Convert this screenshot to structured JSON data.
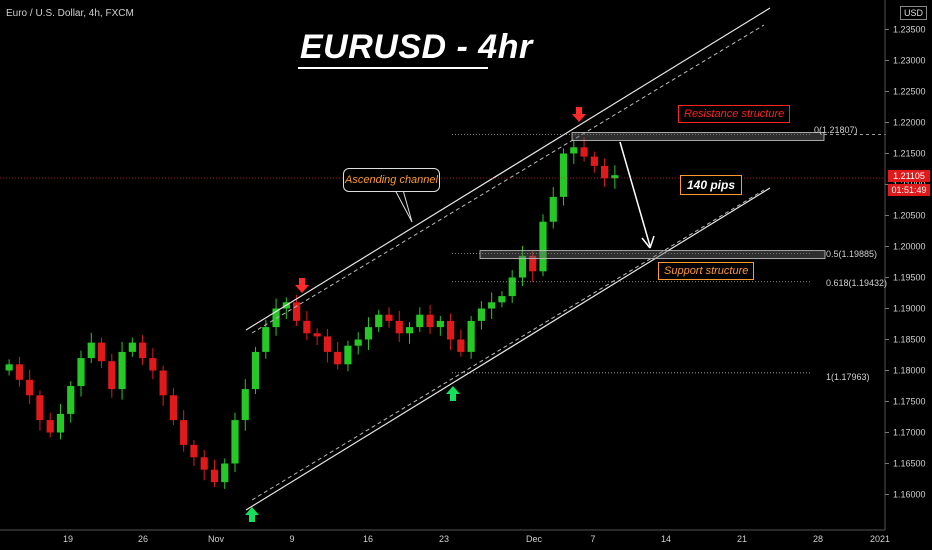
{
  "header": {
    "symbol": "Euro / U.S. Dollar, 4h, FXCM",
    "title": "EURUSD - 4hr",
    "currency": "USD"
  },
  "annotations": {
    "resistance": "Resistance structure",
    "support": "Support structure",
    "channel": "Ascending channel",
    "pips": "140 pips"
  },
  "fib_levels": [
    {
      "label": "0(1.21807)",
      "price": 1.21807
    },
    {
      "label": "0.5(1.19885)",
      "price": 1.19885
    },
    {
      "label": "0.618(1.19432)",
      "price": 1.19432
    },
    {
      "label": "1(1.17963)",
      "price": 1.17963
    }
  ],
  "price_badges": {
    "last_price": "1.21105",
    "countdown": "01:51:49"
  },
  "colors": {
    "up": "#26c826",
    "down": "#e01a1a",
    "resistance": "#ff2222",
    "support": "#ff9a2e",
    "arrow_up": "#16e05a",
    "arrow_down": "#ff2a2a"
  },
  "chart_data": {
    "type": "line",
    "title": "EURUSD - 4hr",
    "ylabel": "USD",
    "ylim": [
      1.1575,
      1.2375
    ],
    "y_ticks": [
      "1.23500",
      "1.23000",
      "1.22500",
      "1.22000",
      "1.21500",
      "1.21000",
      "1.20500",
      "1.20000",
      "1.19500",
      "1.19000",
      "1.18500",
      "1.18000",
      "1.17500",
      "1.17000",
      "1.16500",
      "1.16000"
    ],
    "x_ticks": [
      "19",
      "26",
      "Nov",
      "9",
      "16",
      "23",
      "Dec",
      "7",
      "14",
      "21",
      "28",
      "2021"
    ],
    "series": [
      {
        "values": [
          1.181,
          1.1785,
          1.176,
          1.172,
          1.17,
          1.173,
          1.1775,
          1.182,
          1.1845,
          1.1815,
          1.177,
          1.183,
          1.1845,
          1.182,
          1.18,
          1.176,
          1.172,
          1.168,
          1.166,
          1.164,
          1.162,
          1.165,
          1.172,
          1.177,
          1.183,
          1.187,
          1.19,
          1.191,
          1.188,
          1.186,
          1.1855,
          1.183,
          1.181,
          1.184,
          1.185,
          1.187,
          1.189,
          1.188,
          1.186,
          1.187,
          1.189,
          1.187,
          1.188,
          1.185,
          1.183,
          1.188,
          1.19,
          1.191,
          1.192,
          1.195,
          1.1985,
          1.196,
          1.204,
          1.208,
          1.215,
          1.216,
          1.2145,
          1.213,
          1.211,
          1.2115
        ]
      }
    ]
  }
}
